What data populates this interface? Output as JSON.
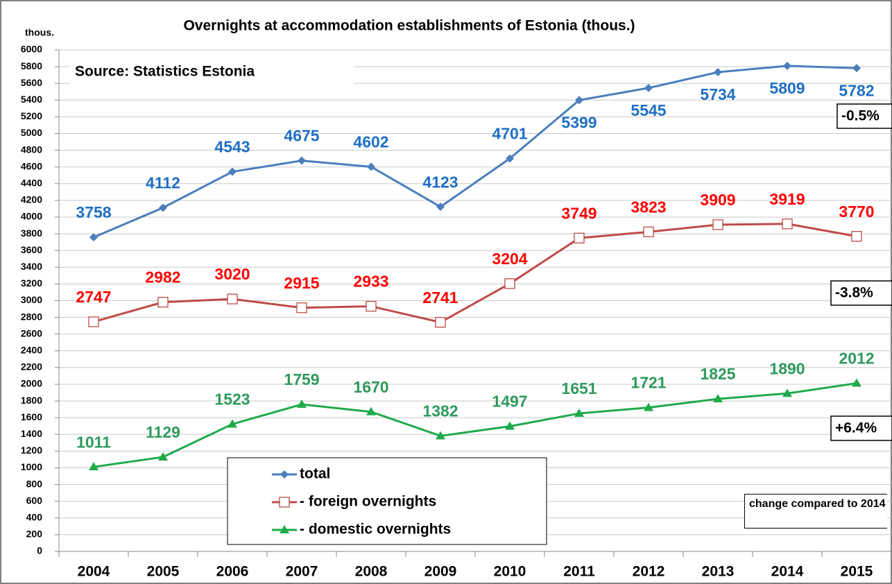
{
  "chart_data": {
    "type": "line",
    "title": "Overnights at accommodation establishments of Estonia (thous.)",
    "y_label": "thous.",
    "source": "Source: Statistics Estonia",
    "categories": [
      "2004",
      "2005",
      "2006",
      "2007",
      "2008",
      "2009",
      "2010",
      "2011",
      "2012",
      "2013",
      "2014",
      "2015"
    ],
    "series": [
      {
        "name": "total",
        "color": "#4a7ebb",
        "label_color": "#1f6fc5",
        "marker": "diamond",
        "values": [
          3758,
          4112,
          4543,
          4675,
          4602,
          4123,
          4701,
          5399,
          5545,
          5734,
          5809,
          5782
        ]
      },
      {
        "name": "- foreign overnights",
        "color": "#be4b48",
        "label_color": "#ff0000",
        "marker": "square",
        "values": [
          2747,
          2982,
          3020,
          2915,
          2933,
          2741,
          3204,
          3749,
          3823,
          3909,
          3919,
          3770
        ]
      },
      {
        "name": "- domestic overnights",
        "color": "#1faa4b",
        "label_color": "#2e9a5c",
        "marker": "triangle",
        "values": [
          1011,
          1129,
          1523,
          1759,
          1670,
          1382,
          1497,
          1651,
          1721,
          1825,
          1890,
          2012
        ]
      }
    ],
    "change_labels": [
      "-0.5%",
      "-3.8%",
      "+6.4%"
    ],
    "change_note": "change compared to 2014",
    "ylim": [
      0,
      6000
    ],
    "yticks": [
      0,
      200,
      400,
      600,
      800,
      1000,
      1200,
      1400,
      1600,
      1800,
      2000,
      2200,
      2400,
      2600,
      2800,
      3000,
      3200,
      3400,
      3600,
      3800,
      4000,
      4200,
      4400,
      4600,
      4800,
      5000,
      5200,
      5400,
      5600,
      5800,
      6000
    ],
    "grid": true
  }
}
